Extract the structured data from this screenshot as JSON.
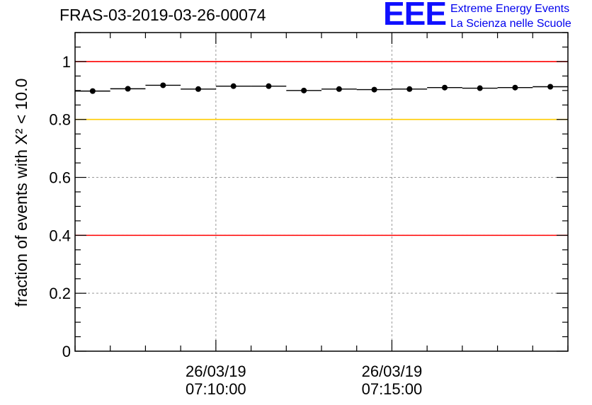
{
  "title": "FRAS-03-2019-03-26-00074",
  "logo": {
    "mark": "EEE",
    "line1": "Extreme Energy Events",
    "line2": "La Scienza nelle Scuole",
    "color": "#0000ee"
  },
  "chart_data": {
    "type": "scatter",
    "title": "FRAS-03-2019-03-26-00074",
    "ylabel": "fraction of events with X² < 10.0",
    "xlabel": "",
    "ylim": [
      0,
      1.1
    ],
    "yticks": [
      0,
      0.2,
      0.4,
      0.6,
      0.8,
      1
    ],
    "ytick_labels": [
      "0",
      "0.2",
      "0.4",
      "0.6",
      "0.8",
      "1"
    ],
    "x_unit": "minutes after 07:06:00 on 26/03/19",
    "xlim": [
      0,
      14
    ],
    "xticks": [
      {
        "x": 4,
        "date": "26/03/19",
        "time": "07:10:00"
      },
      {
        "x": 9,
        "date": "26/03/19",
        "time": "07:15:00"
      }
    ],
    "grid": true,
    "reference_lines": [
      {
        "y": 1.0,
        "color": "#ff0000"
      },
      {
        "y": 0.8,
        "color": "#ffcc00"
      },
      {
        "y": 0.4,
        "color": "#ff0000"
      }
    ],
    "series": [
      {
        "color": "#000000",
        "bin_width": 1,
        "x": [
          0.5,
          1.5,
          2.5,
          3.5,
          4.5,
          5.5,
          6.5,
          7.5,
          8.5,
          9.5,
          10.5,
          11.5,
          12.5,
          13.5
        ],
        "y": [
          0.898,
          0.906,
          0.918,
          0.905,
          0.915,
          0.915,
          0.9,
          0.905,
          0.903,
          0.905,
          0.91,
          0.908,
          0.91,
          0.913
        ]
      }
    ]
  }
}
